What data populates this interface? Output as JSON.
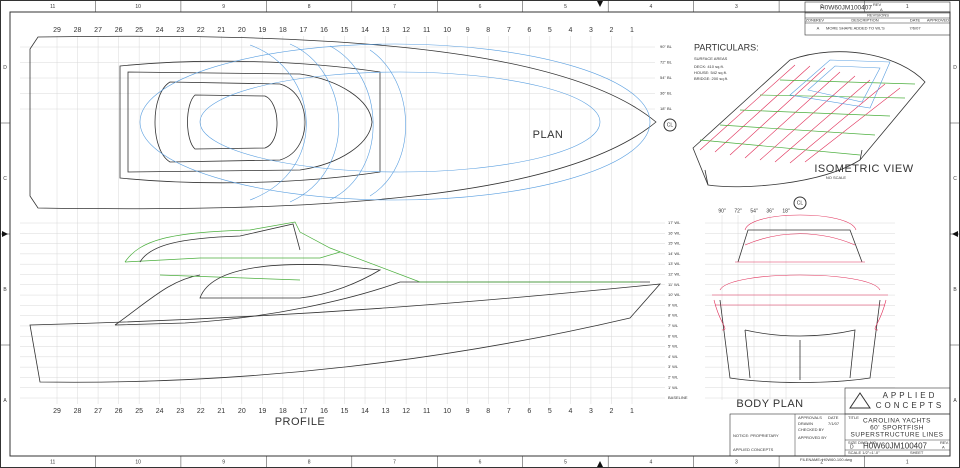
{
  "border": {
    "columns": [
      "11",
      "10",
      "9",
      "8",
      "7",
      "6",
      "5",
      "4",
      "3",
      "2",
      "1"
    ],
    "rows": [
      "D",
      "C",
      "B",
      "A"
    ]
  },
  "stations": [
    "29",
    "28",
    "27",
    "26",
    "25",
    "24",
    "23",
    "22",
    "21",
    "20",
    "19",
    "18",
    "17",
    "16",
    "15",
    "14",
    "13",
    "12",
    "11",
    "10",
    "9",
    "8",
    "7",
    "6",
    "5",
    "4",
    "3",
    "2",
    "1"
  ],
  "plan": {
    "label": "PLAN",
    "centerline": "CL",
    "buttocks": [
      "90\" BL",
      "72\" BL",
      "54\" BL",
      "36\" BL",
      "18\" BL"
    ]
  },
  "particulars": {
    "title": "PARTICULARS:",
    "subtitle": "SURFACE AREAS",
    "items": [
      "DECK: 410 sq.ft.",
      "HOUSE: 542 sq.ft.",
      "BRIDGE: 200 sq.ft."
    ]
  },
  "isometric": {
    "label": "ISOMETRIC VIEW",
    "note": "NO SCALE"
  },
  "profile": {
    "label": "PROFILE",
    "waterlines": [
      "17' WL",
      "16' WL",
      "15' WL",
      "14' WL",
      "13' WL",
      "12' WL",
      "11' WL",
      "10' WL",
      "9' WL",
      "8' WL",
      "7' WL",
      "6' WL",
      "5' WL",
      "4' WL",
      "3' WL",
      "2' WL",
      "1' WL",
      "BASELINE"
    ]
  },
  "body_plan": {
    "label": "BODY PLAN",
    "centerline": "CL",
    "buttocks": [
      "90\"",
      "72\"",
      "54\"",
      "36\"",
      "18\""
    ]
  },
  "revisions": {
    "drawing_number": "H0W60JM100407",
    "rev_label": "REV",
    "rev": "A",
    "title": "REVISIONS",
    "headers": [
      "ZONE",
      "REV",
      "DESCRIPTION",
      "DATE",
      "APPROVED"
    ],
    "entry": {
      "rev": "A",
      "description": "MORE SHAPE ADDED TO WL'S",
      "date": "7/6/07"
    }
  },
  "company": {
    "line1": "APPLIED",
    "line2": "CONCEPTS"
  },
  "title_block": {
    "approvals": "APPROVALS",
    "date_label": "DATE",
    "drawn": "DRAWN",
    "drawn_date": "7/1/07",
    "checked": "CHECKED BY",
    "approved": "APPROVED BY",
    "title_label": "TITLE",
    "title_lines": [
      "CAROLINA YACHTS",
      "60' SPORTFISH",
      "SUPERSTRUCTURE LINES"
    ],
    "size_label": "SIZE",
    "size": "D",
    "dwg_label": "DWG. NO.",
    "drawing_number": "H0W60JM100407",
    "rev_label": "REV.",
    "rev": "A",
    "scale": "SCALE 1/2\"=1'-0\"",
    "sheet": "SHEET",
    "filename": "FILENAME: H0W60-100.dwg",
    "notice_title": "NOTICE: PROPRIETARY",
    "notice_owner": "APPLIED CONCEPTS"
  }
}
